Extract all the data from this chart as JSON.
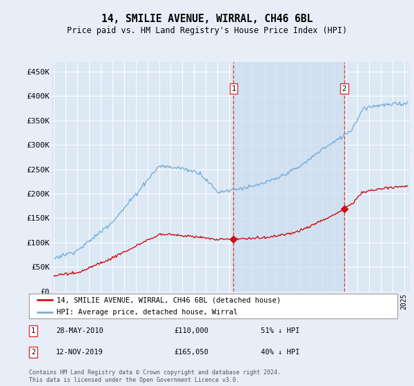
{
  "title": "14, SMILIE AVENUE, WIRRAL, CH46 6BL",
  "subtitle": "Price paid vs. HM Land Registry's House Price Index (HPI)",
  "ylabel_ticks": [
    "£0",
    "£50K",
    "£100K",
    "£150K",
    "£200K",
    "£250K",
    "£300K",
    "£350K",
    "£400K",
    "£450K"
  ],
  "ytick_values": [
    0,
    50000,
    100000,
    150000,
    200000,
    250000,
    300000,
    350000,
    400000,
    450000
  ],
  "ylim": [
    0,
    470000
  ],
  "xlim_start": 1994.8,
  "xlim_end": 2025.5,
  "marker1_x": 2010.38,
  "marker2_x": 2019.87,
  "hpi_color": "#7aaed6",
  "price_color": "#cc1111",
  "vline_color": "#dd3333",
  "shade_color": "#ccddf0",
  "bg_color": "#e8eef8",
  "plot_bg": "#dce8f4",
  "grid_color": "#ffffff",
  "legend_label_price": "14, SMILIE AVENUE, WIRRAL, CH46 6BL (detached house)",
  "legend_label_hpi": "HPI: Average price, detached house, Wirral",
  "marker1_date": "28-MAY-2010",
  "marker1_price": "£110,000",
  "marker1_pct": "51% ↓ HPI",
  "marker2_date": "12-NOV-2019",
  "marker2_price": "£165,050",
  "marker2_pct": "40% ↓ HPI",
  "footer": "Contains HM Land Registry data © Crown copyright and database right 2024.\nThis data is licensed under the Open Government Licence v3.0."
}
